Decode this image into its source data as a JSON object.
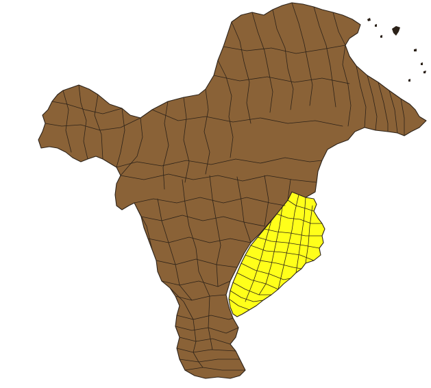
{
  "map": {
    "colors": {
      "background": "#ffffff",
      "base_fill": "#8a6237",
      "highlight_fill": "#ffff1a",
      "boundary_stroke": "#2b2118"
    },
    "layers": [
      {
        "id": "base-region",
        "fill_role": "base_fill"
      },
      {
        "id": "highlighted-region",
        "fill_role": "highlight_fill"
      }
    ]
  }
}
